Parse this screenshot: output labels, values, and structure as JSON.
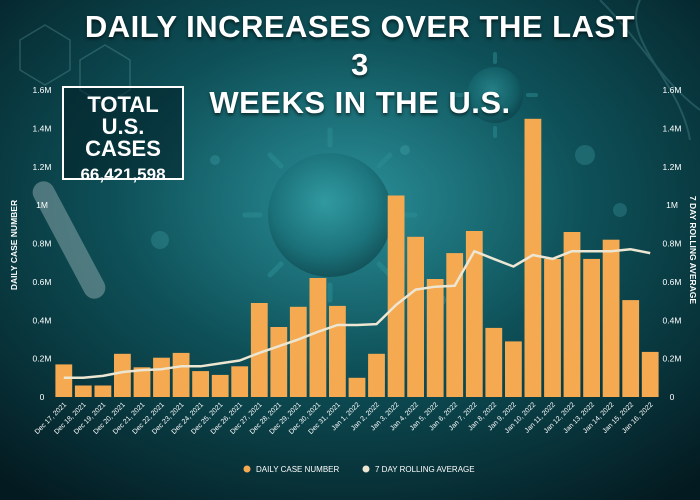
{
  "header": {
    "title_line1": "DAILY INCREASES OVER THE LAST 3",
    "title_line2": "WEEKS IN THE U.S."
  },
  "total_box": {
    "label_line1": "TOTAL U.S.",
    "label_line2": "CASES",
    "value": "66,421,598"
  },
  "colors": {
    "bar": "#f5a951",
    "line": "#ece6d2",
    "text": "#ffffff",
    "background": "#04252c"
  },
  "chart_data": {
    "type": "bar",
    "ylabel_left": "DAILY CASE NUMBER",
    "ylabel_right": "7 DAY ROLLING AVERAGE",
    "ylim": [
      0,
      1600000
    ],
    "ticks": [
      0,
      200000,
      400000,
      600000,
      800000,
      1000000,
      1200000,
      1400000,
      1600000
    ],
    "tick_labels": [
      "0",
      "0.2M",
      "0.4M",
      "0.6M",
      "0.8M",
      "1M",
      "1.2M",
      "1.4M",
      "1.6M"
    ],
    "grid": false,
    "legend_position": "bottom-center",
    "categories": [
      "Dec 17, 2021",
      "Dec 18, 2021",
      "Dec 19, 2021",
      "Dec 20, 2021",
      "Dec 21, 2021",
      "Dec 22, 2021",
      "Dec 23, 2021",
      "Dec 24, 2021",
      "Dec 25, 2021",
      "Dec 26, 2021",
      "Dec 27, 2021",
      "Dec 28, 2021",
      "Dec 29, 2021",
      "Dec 30, 2021",
      "Dec 31, 2021",
      "Jan 1, 2022",
      "Jan 2, 2022",
      "Jan 3, 2022",
      "Jan 4, 2022",
      "Jan 5, 2022",
      "Jan 6, 2022",
      "Jan 7, 2022",
      "Jan 8, 2022",
      "Jan 9, 2022",
      "Jan 10, 2022",
      "Jan 11, 2022",
      "Jan 12, 2022",
      "Jan 13, 2022",
      "Jan 14, 2022",
      "Jan 15, 2022",
      "Jan 16, 2022"
    ],
    "series": [
      {
        "name": "DAILY CASE NUMBER",
        "type": "bar",
        "values": [
          170000,
          60000,
          60000,
          225000,
          155000,
          205000,
          230000,
          135000,
          115000,
          160000,
          490000,
          365000,
          470000,
          620000,
          475000,
          100000,
          225000,
          1050000,
          835000,
          615000,
          750000,
          865000,
          360000,
          290000,
          1450000,
          720000,
          860000,
          720000,
          820000,
          505000,
          235000
        ]
      },
      {
        "name": "7 DAY ROLLING AVERAGE",
        "type": "line",
        "values": [
          100000,
          100000,
          110000,
          130000,
          140000,
          145000,
          160000,
          160000,
          175000,
          190000,
          230000,
          265000,
          300000,
          340000,
          375000,
          375000,
          380000,
          480000,
          560000,
          575000,
          580000,
          760000,
          720000,
          680000,
          740000,
          720000,
          760000,
          760000,
          760000,
          770000,
          750000
        ]
      }
    ]
  }
}
